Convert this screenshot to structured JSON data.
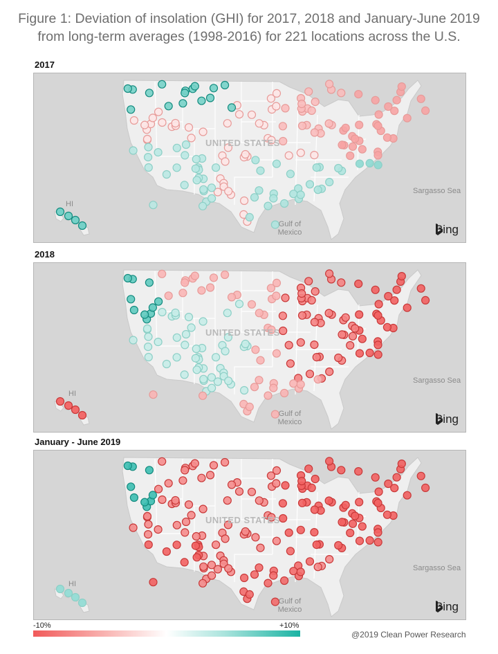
{
  "title_line1": "Figure 1: Deviation of insolation (GHI) for 2017, 2018 and January-June 2019",
  "title_line2": "from long-term averages (1998-2016) for 221 locations across the U.S.",
  "map_labels": {
    "country": "UNITED STATES",
    "hawaii": "HI",
    "sea": "Sargasso Sea",
    "gulf_line1": "Gulf of",
    "gulf_line2": "Mexico",
    "provider": "Bing",
    "provider_icon": "bing-logo-icon"
  },
  "panels": [
    {
      "id": "2017",
      "label": "2017"
    },
    {
      "id": "2018",
      "label": "2018"
    },
    {
      "id": "2019",
      "label": "January - June 2019"
    }
  ],
  "legend": {
    "low_label": "-10%",
    "high_label": "+10%",
    "low_color": "#f15a5a",
    "mid_color": "#ffffff",
    "high_color": "#1ab3a3"
  },
  "copyright": "@2019 Clean Power Research",
  "colors": {
    "land": "#efefef",
    "water": "#d6d6d6",
    "border": "#ffffff"
  }
}
